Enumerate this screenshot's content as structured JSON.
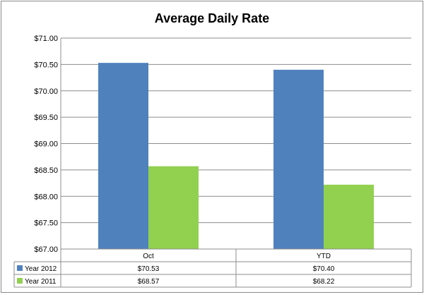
{
  "chart_data": {
    "type": "bar",
    "title": "Average Daily Rate",
    "categories": [
      "Oct",
      "YTD"
    ],
    "series": [
      {
        "name": "Year 2012",
        "values": [
          70.53,
          70.4
        ],
        "color": "#4f81bd"
      },
      {
        "name": "Year 2011",
        "values": [
          68.57,
          68.22
        ],
        "color": "#92d050"
      }
    ],
    "ylim": [
      67.0,
      71.0
    ],
    "yticks": [
      "$67.00",
      "$67.50",
      "$68.00",
      "$68.50",
      "$69.00",
      "$69.50",
      "$70.00",
      "$70.50",
      "$71.00"
    ],
    "grid": true,
    "legend": "data-table-below",
    "data_table": {
      "rows": [
        {
          "series": "Year 2012",
          "cells": [
            "$70.53",
            "$70.40"
          ]
        },
        {
          "series": "Year 2011",
          "cells": [
            "$68.57",
            "$68.22"
          ]
        }
      ]
    }
  }
}
